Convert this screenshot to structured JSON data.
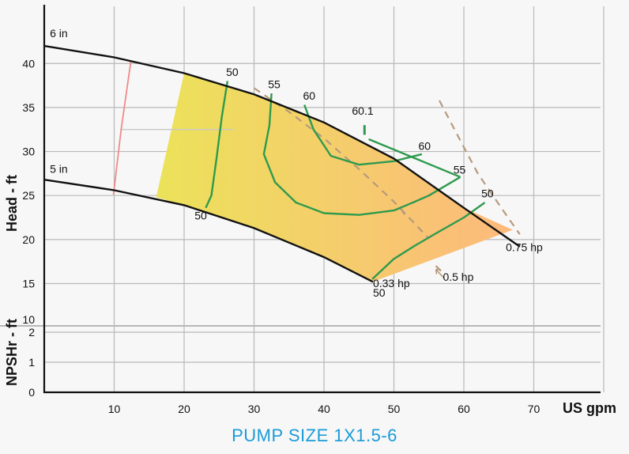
{
  "caption": "PUMP SIZE 1X1.5-6",
  "colors": {
    "caption": "#1a9bd7",
    "grid": "#b8b8b8",
    "impeller": "#111111",
    "efficiency": "#2f9a4e",
    "power": "#b69a7c",
    "npsh": "#f08a8a",
    "zone_start": "#ece25a",
    "zone_end": "#fdb97c"
  },
  "chart_data": {
    "type": "line",
    "xlabel": "US gpm",
    "ylabel": "Head - ft",
    "y2label": "NPSHr - ft",
    "xlim": [
      0,
      70
    ],
    "ylim": [
      14.5,
      44
    ],
    "y2lim": [
      0,
      2
    ],
    "grid": true,
    "xticks": [
      "10",
      "20",
      "30",
      "40",
      "50",
      "60",
      "70"
    ],
    "yticks": [
      "15",
      "20",
      "25",
      "30",
      "35",
      "40"
    ],
    "y2ticks": [
      "0",
      "1",
      "2"
    ],
    "y2_top_label": "10",
    "impeller_curves": [
      {
        "label": "6 in",
        "points": [
          [
            0,
            42
          ],
          [
            10,
            40.7
          ],
          [
            20,
            38.9
          ],
          [
            30,
            36.5
          ],
          [
            40,
            33.3
          ],
          [
            50,
            29.2
          ],
          [
            60,
            23.6
          ],
          [
            68,
            19.2
          ]
        ]
      },
      {
        "label": "5 in",
        "points": [
          [
            0,
            26.8
          ],
          [
            10,
            25.6
          ],
          [
            20,
            23.9
          ],
          [
            30,
            21.3
          ],
          [
            40,
            18
          ],
          [
            47,
            15.2
          ]
        ]
      }
    ],
    "operating_region": {
      "top": [
        [
          20,
          38.9
        ],
        [
          30,
          36.5
        ],
        [
          40,
          33.3
        ],
        [
          50,
          29.2
        ],
        [
          60,
          23.6
        ],
        [
          67,
          21.1
        ]
      ],
      "bottom": [
        [
          47,
          15.2
        ],
        [
          40,
          18
        ],
        [
          30,
          21.3
        ],
        [
          20,
          23.9
        ],
        [
          16,
          24.8
        ]
      ]
    },
    "efficiency_curves": [
      {
        "points": [
          [
            26.2,
            38
          ],
          [
            25.4,
            34
          ],
          [
            24.6,
            29
          ],
          [
            23.9,
            25
          ],
          [
            23.1,
            23.6
          ]
        ]
      },
      {
        "points": [
          [
            32.5,
            36.6
          ],
          [
            32.2,
            33
          ],
          [
            31.4,
            29.7
          ],
          [
            33,
            26.5
          ],
          [
            36,
            24.2
          ],
          [
            40,
            23
          ],
          [
            45,
            22.8
          ],
          [
            50,
            23.3
          ],
          [
            53,
            24.3
          ],
          [
            55,
            25
          ],
          [
            59.5,
            27.1
          ]
        ]
      },
      {
        "points": [
          [
            37.2,
            35.3
          ],
          [
            38.5,
            32.5
          ],
          [
            41,
            29.5
          ],
          [
            45,
            28.5
          ],
          [
            50,
            28.9
          ],
          [
            54,
            29.7
          ]
        ]
      },
      {
        "points": [
          [
            46.4,
            31.4
          ],
          [
            59.5,
            27.1
          ]
        ]
      },
      {
        "points": [
          [
            46.9,
            15.5
          ],
          [
            50,
            17.8
          ],
          [
            53,
            19.3
          ],
          [
            56,
            20.7
          ],
          [
            60,
            22.5
          ],
          [
            63,
            24.2
          ]
        ]
      }
    ],
    "efficiency_stub": {
      "points": [
        [
          45.8,
          33
        ],
        [
          45.8,
          31.9
        ]
      ]
    },
    "power_curves": [
      {
        "label": "0.33 hp",
        "points": [
          [
            30,
            37.2
          ],
          [
            35,
            34.5
          ],
          [
            40,
            31.5
          ],
          [
            45,
            28
          ],
          [
            50,
            24.3
          ],
          [
            55,
            20.1
          ]
        ]
      },
      {
        "label": "0.5 hp",
        "points": [
          [
            51,
            23.5
          ],
          [
            52,
            22.3
          ]
        ]
      },
      {
        "label": "0.5 hp",
        "points": [
          [
            56,
            17
          ],
          [
            57,
            16.2
          ]
        ]
      },
      {
        "label": "0.75 hp",
        "points": [
          [
            56.5,
            35.8
          ],
          [
            59,
            32
          ],
          [
            62,
            27.5
          ],
          [
            65,
            24
          ],
          [
            68,
            20.6
          ]
        ]
      }
    ],
    "npsh_curve": {
      "points": [
        [
          9.9,
          25.1
        ],
        [
          11,
          32.5
        ],
        [
          12.4,
          40.3
        ]
      ]
    },
    "reference_lines": [
      {
        "points": [
          [
            11,
            32.5
          ],
          [
            17,
            32.5
          ],
          [
            27,
            32.5
          ]
        ]
      },
      {
        "points": [
          [
            10,
            25
          ],
          [
            13,
            25
          ]
        ]
      }
    ],
    "labels": [
      {
        "text": "6 in",
        "x": 0.8,
        "y": 43
      },
      {
        "text": "5 in",
        "x": 0.8,
        "y": 27.6
      },
      {
        "text": "50",
        "x": 26,
        "y": 38.6
      },
      {
        "text": "55",
        "x": 32,
        "y": 37.2
      },
      {
        "text": "60",
        "x": 37,
        "y": 35.9
      },
      {
        "text": "60.1",
        "x": 44,
        "y": 34.2
      },
      {
        "text": "60",
        "x": 53.5,
        "y": 30.2
      },
      {
        "text": "55",
        "x": 58.5,
        "y": 27.5
      },
      {
        "text": "50",
        "x": 62.5,
        "y": 24.8
      },
      {
        "text": "50",
        "x": 21.5,
        "y": 22.3
      },
      {
        "text": "0.33 hp",
        "x": 47,
        "y": 14.6
      },
      {
        "text": "50",
        "x": 47,
        "y": 13.5
      },
      {
        "text": "0.5 hp",
        "x": 57,
        "y": 15.3
      },
      {
        "text": "0.75 hp",
        "x": 66,
        "y": 18.7
      }
    ]
  }
}
